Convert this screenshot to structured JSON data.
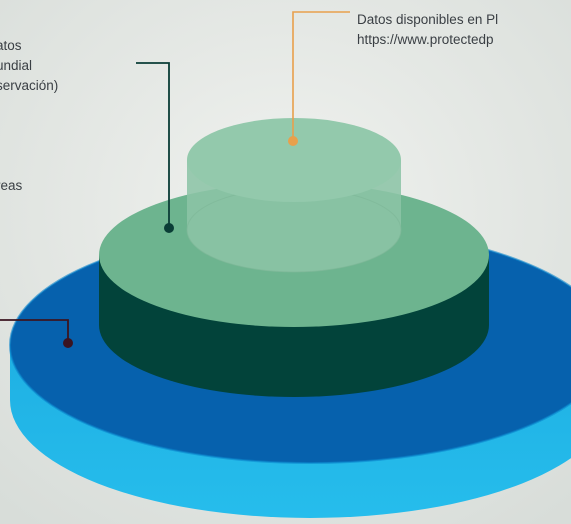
{
  "colors": {
    "background": "#e6e9e6",
    "top_tier": "#8fc4a8",
    "middle_tier_top": "#6cb38f",
    "middle_tier_side": "#02433a",
    "base_tier_top": "#0460ac",
    "base_tier_side": "#22b8e8",
    "leader_orange": "#e8a04c",
    "leader_dark": "#0a3d36",
    "leader_darkred": "#3b1420",
    "text": "#3a3f44"
  },
  "labels": {
    "top_right": {
      "line1": "Datos disponibles en Pl",
      "line2": "https://www.protectedp"
    },
    "top_left": {
      "line1": "atos",
      "line2": "undial",
      "line3": "servación)"
    },
    "mid_left": {
      "line1": "reas"
    }
  }
}
